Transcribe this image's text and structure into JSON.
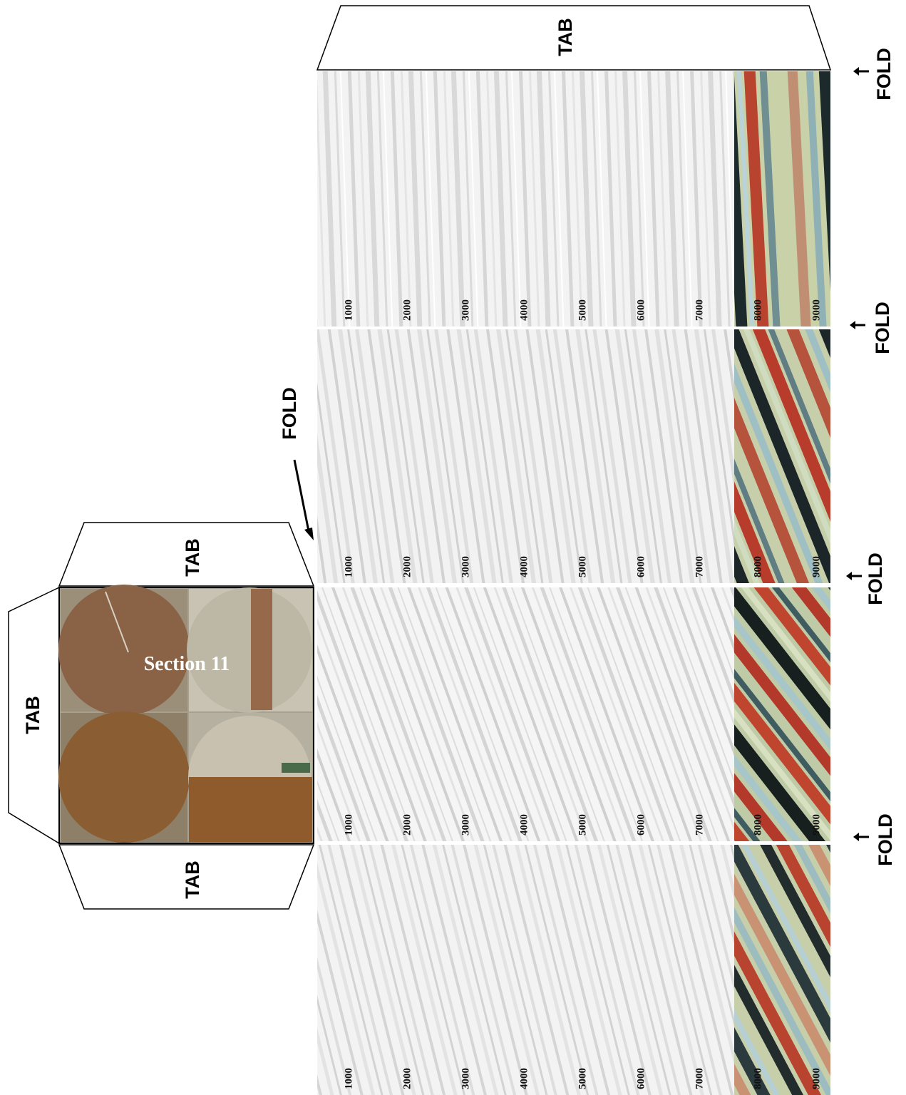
{
  "top_tab": "TAB",
  "map": {
    "label": "Section 11",
    "tabs": [
      "TAB",
      "TAB",
      "TAB"
    ]
  },
  "folds": [
    "FOLD",
    "FOLD",
    "FOLD",
    "FOLD",
    "FOLD"
  ],
  "panels": [
    {
      "depths": [
        1000,
        2000,
        3000,
        4000,
        5000,
        6000,
        7000,
        8000,
        9000
      ]
    },
    {
      "depths": [
        1000,
        2000,
        3000,
        4000,
        5000,
        6000,
        7000,
        8000,
        9000
      ]
    },
    {
      "depths": [
        1000,
        2000,
        3000,
        4000,
        5000,
        6000,
        7000,
        8000,
        9000
      ]
    },
    {
      "depths": [
        1000,
        2000,
        3000,
        4000,
        5000,
        6000,
        7000,
        8000,
        9000
      ]
    }
  ]
}
